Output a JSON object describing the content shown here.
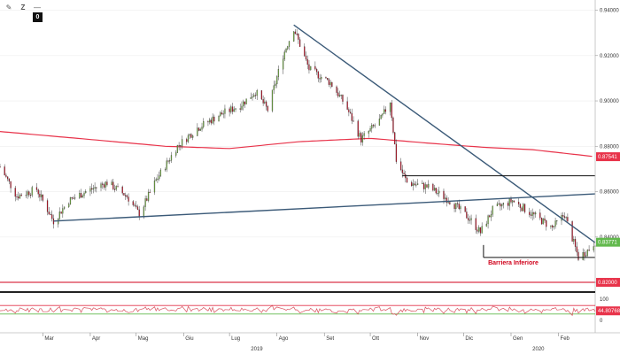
{
  "toolbar": {
    "badge": "0",
    "icons": [
      "pencil-icon",
      "zoom-z-icon",
      "dash-icon"
    ]
  },
  "colors": {
    "up": "#7bc043",
    "down": "#d0021b",
    "trend": "#3b5a78",
    "ma": "#e8334a",
    "level": "#111111",
    "rsi": "#d94f5c",
    "rsi_upper": "#e2334b",
    "rsi_lower": "#62b94d",
    "current_tag": "#62b94d",
    "ma_tag": "#e8334a",
    "support_tag": "#e8334a",
    "rsi_tag": "#e8334a"
  },
  "chart_data": {
    "type": "candlestick",
    "title": "",
    "xlabel": "",
    "ylabel": "",
    "x_range": [
      "2019-02-01",
      "2020-02-25"
    ],
    "ylim": [
      0.8165,
      0.9445
    ],
    "y_ticks": [
      "0.94000",
      "0.92000",
      "0.90000",
      "0.88000",
      "0.86000",
      "0.84000",
      "0.82000"
    ],
    "x_month_labels": [
      {
        "date": "2019-03-01",
        "label": "Mar"
      },
      {
        "date": "2019-04-01",
        "label": "Apr"
      },
      {
        "date": "2019-05-01",
        "label": "Mag"
      },
      {
        "date": "2019-06-01",
        "label": "Giu"
      },
      {
        "date": "2019-07-01",
        "label": "Lug"
      },
      {
        "date": "2019-08-01",
        "label": "Ago"
      },
      {
        "date": "2019-09-01",
        "label": "Set"
      },
      {
        "date": "2019-10-01",
        "label": "Ott"
      },
      {
        "date": "2019-11-01",
        "label": "Nov"
      },
      {
        "date": "2019-12-01",
        "label": "Dic"
      },
      {
        "date": "2020-01-01",
        "label": "Gen"
      },
      {
        "date": "2020-02-01",
        "label": "Feb"
      }
    ],
    "x_year_labels": [
      {
        "date": "2019-07-15",
        "label": "2019"
      },
      {
        "date": "2020-01-15",
        "label": "2020"
      }
    ],
    "price_keypoints": [
      [
        "2019-02-01",
        0.871
      ],
      [
        "2019-02-12",
        0.858
      ],
      [
        "2019-02-25",
        0.861
      ],
      [
        "2019-03-08",
        0.847
      ],
      [
        "2019-03-18",
        0.856
      ],
      [
        "2019-03-29",
        0.86
      ],
      [
        "2019-04-12",
        0.864
      ],
      [
        "2019-04-25",
        0.858
      ],
      [
        "2019-05-03",
        0.85
      ],
      [
        "2019-05-14",
        0.865
      ],
      [
        "2019-05-28",
        0.88
      ],
      [
        "2019-06-10",
        0.888
      ],
      [
        "2019-06-25",
        0.894
      ],
      [
        "2019-07-08",
        0.898
      ],
      [
        "2019-07-18",
        0.904
      ],
      [
        "2019-07-26",
        0.896
      ],
      [
        "2019-08-05",
        0.92
      ],
      [
        "2019-08-12",
        0.932
      ],
      [
        "2019-08-22",
        0.914
      ],
      [
        "2019-09-05",
        0.908
      ],
      [
        "2019-09-15",
        0.898
      ],
      [
        "2019-09-25",
        0.883
      ],
      [
        "2019-10-08",
        0.892
      ],
      [
        "2019-10-14",
        0.9
      ],
      [
        "2019-10-18",
        0.874
      ],
      [
        "2019-10-25",
        0.864
      ],
      [
        "2019-11-08",
        0.862
      ],
      [
        "2019-11-22",
        0.856
      ],
      [
        "2019-12-05",
        0.848
      ],
      [
        "2019-12-12",
        0.842
      ],
      [
        "2019-12-20",
        0.852
      ],
      [
        "2020-01-02",
        0.856
      ],
      [
        "2020-01-15",
        0.85
      ],
      [
        "2020-01-28",
        0.844
      ],
      [
        "2020-02-05",
        0.85
      ],
      [
        "2020-02-14",
        0.831
      ],
      [
        "2020-02-20",
        0.834
      ],
      [
        "2020-02-25",
        0.8378
      ]
    ],
    "ma_keypoints": [
      [
        "2019-02-01",
        0.8865
      ],
      [
        "2019-04-01",
        0.883
      ],
      [
        "2019-05-20",
        0.88
      ],
      [
        "2019-07-01",
        0.879
      ],
      [
        "2019-08-15",
        0.882
      ],
      [
        "2019-10-01",
        0.8835
      ],
      [
        "2019-11-15",
        0.881
      ],
      [
        "2019-12-15",
        0.8795
      ],
      [
        "2020-01-15",
        0.8785
      ],
      [
        "2020-02-25",
        0.8754
      ]
    ],
    "trendlines": [
      {
        "name": "support",
        "from": [
          "2019-03-08",
          0.847
        ],
        "to": [
          "2020-02-25",
          0.859
        ]
      },
      {
        "name": "resistance",
        "from": [
          "2019-08-12",
          0.9335
        ],
        "to": [
          "2020-02-25",
          0.8375
        ]
      }
    ],
    "horizontal_lines": [
      {
        "name": "resistance-level",
        "value": 0.867,
        "from": "2019-10-22",
        "to": "2020-02-25"
      },
      {
        "name": "barriera-inferiore",
        "value": 0.831,
        "from": "2019-12-14",
        "to": "2020-02-25"
      },
      {
        "name": "support-082",
        "value": 0.82,
        "from": "2019-02-01",
        "to": "2020-02-25"
      }
    ],
    "annotations": [
      {
        "text": "Barriera Inferiore",
        "date": "2019-12-17",
        "value": 0.8278
      }
    ],
    "price_tags": [
      {
        "name": "ma-value",
        "value": 0.8754,
        "label": "0.87541"
      },
      {
        "name": "current-price",
        "value": 0.8377,
        "label": "0.83771"
      },
      {
        "name": "support-value",
        "value": 0.82,
        "label": "0.82000"
      }
    ],
    "rsi": {
      "ylim": [
        0,
        100
      ],
      "ticks": [
        "100",
        "0"
      ],
      "upper_band": 70,
      "lower_band": 30,
      "current_label": "44.80768",
      "current": 44.8
    }
  }
}
